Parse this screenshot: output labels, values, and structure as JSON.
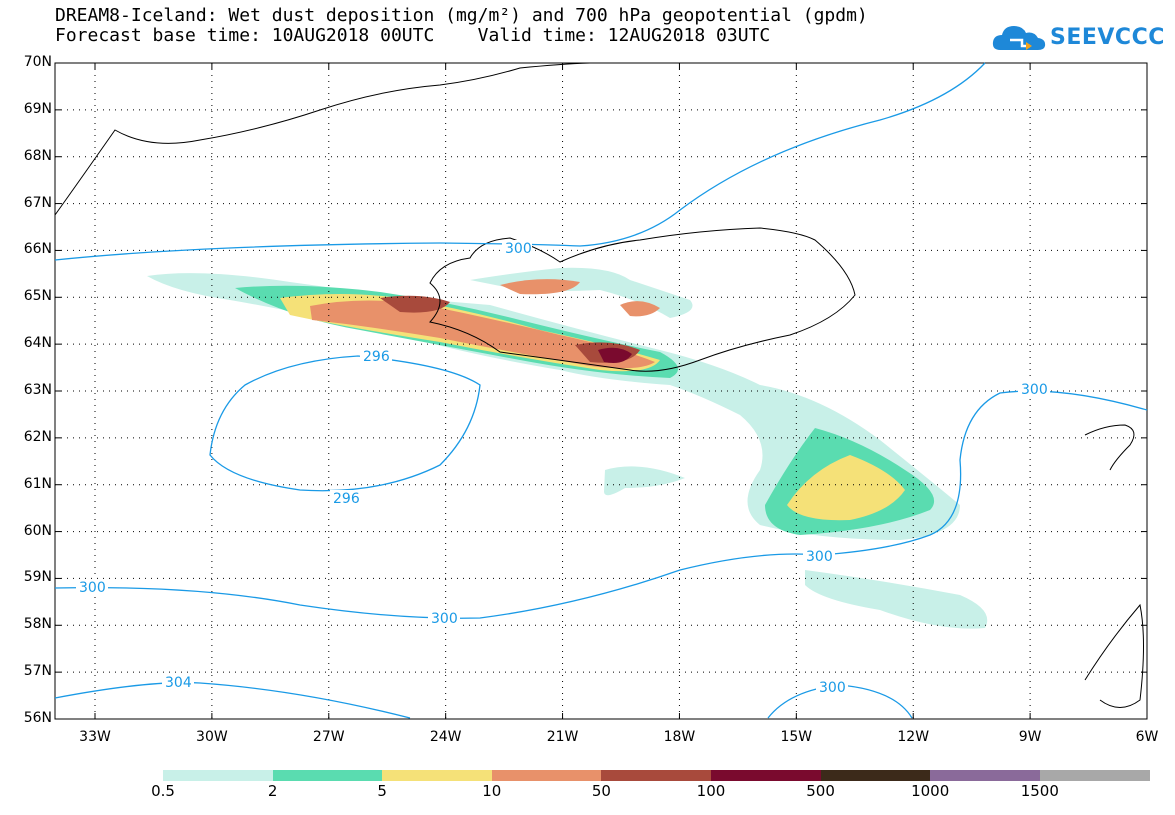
{
  "header": {
    "title_line1": "DREAM8-Iceland: Wet dust deposition (mg/m²) and 700 hPa geopotential (gpdm)",
    "title_line2": "Forecast base time: 10AUG2018 00UTC    Valid time: 12AUG2018 03UTC"
  },
  "logo": {
    "text": "SEEVCCC",
    "color": "#1e88d8"
  },
  "map": {
    "lat_labels": [
      "70N",
      "69N",
      "68N",
      "67N",
      "66N",
      "65N",
      "64N",
      "63N",
      "62N",
      "61N",
      "60N",
      "59N",
      "58N",
      "57N",
      "56N"
    ],
    "lon_labels": [
      "33W",
      "30W",
      "27W",
      "24W",
      "21W",
      "18W",
      "15W",
      "12W",
      "9W",
      "6W"
    ],
    "contour_color": "#1a9ae6",
    "coast_color": "#000000",
    "contour_labels": [
      "300",
      "296",
      "296",
      "300",
      "300",
      "300",
      "304",
      "300",
      "300"
    ]
  },
  "legend": {
    "colors": [
      "#c8f0e8",
      "#5adcb0",
      "#f5e178",
      "#e8916a",
      "#a84a3c",
      "#7a0a2e",
      "#3c2a1a",
      "#8a6a9a",
      "#a8a8a8"
    ],
    "labels": [
      "0.5",
      "2",
      "5",
      "10",
      "50",
      "100",
      "500",
      "1000",
      "1500"
    ]
  }
}
